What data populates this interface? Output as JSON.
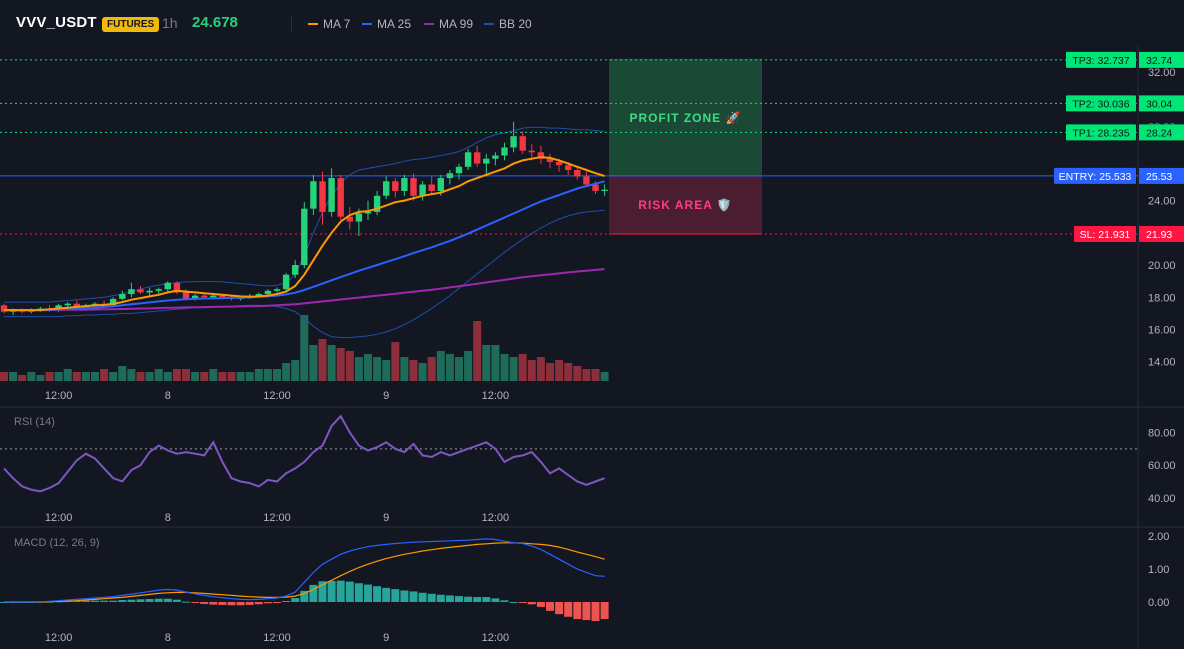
{
  "header": {
    "symbol": "VVV_USDT",
    "badge": "FUTURES",
    "timeframe": "1h",
    "last_price": "24.678",
    "indicators": [
      {
        "label": "MA 7",
        "color": "#ff9800"
      },
      {
        "label": "MA 25",
        "color": "#2962ff"
      },
      {
        "label": "MA 99",
        "color": "#9c27b0"
      },
      {
        "label": "BB 20",
        "color": "#1e4fa8"
      }
    ]
  },
  "colors": {
    "up": "#26d37a",
    "down": "#f23645",
    "vol_up": "#1f6b5a",
    "vol_down": "#8c2f3b",
    "tp": "#00e676",
    "sl": "#ff1744",
    "entry": "#2962ff",
    "rsi": "#7e57c2",
    "macd": "#2962ff",
    "signal": "#ff9800",
    "hist_up": "#26a69a",
    "hist_down": "#ef5350"
  },
  "chart_data": {
    "type": "candlestick",
    "y_ticks": [
      "32.00",
      "24.00",
      "20.00",
      "18.00",
      "16.00",
      "14.00"
    ],
    "y_ticks_hidden": [
      "28.00"
    ],
    "ylim": [
      12.8,
      33.6
    ],
    "time_labels": [
      "12:00",
      "8",
      "12:00",
      "9",
      "12:00"
    ],
    "time_label_index": [
      6,
      18,
      30,
      42,
      54
    ],
    "candles": [
      {
        "o": 17.5,
        "h": 17.6,
        "l": 17.0,
        "c": 17.1
      },
      {
        "o": 17.1,
        "h": 17.3,
        "l": 16.9,
        "c": 17.2
      },
      {
        "o": 17.2,
        "h": 17.3,
        "l": 17.0,
        "c": 17.1
      },
      {
        "o": 17.1,
        "h": 17.3,
        "l": 17.0,
        "c": 17.2
      },
      {
        "o": 17.2,
        "h": 17.4,
        "l": 17.1,
        "c": 17.3
      },
      {
        "o": 17.3,
        "h": 17.5,
        "l": 17.1,
        "c": 17.2
      },
      {
        "o": 17.2,
        "h": 17.6,
        "l": 17.1,
        "c": 17.5
      },
      {
        "o": 17.5,
        "h": 17.7,
        "l": 17.3,
        "c": 17.6
      },
      {
        "o": 17.6,
        "h": 17.8,
        "l": 17.3,
        "c": 17.4
      },
      {
        "o": 17.4,
        "h": 17.6,
        "l": 17.2,
        "c": 17.5
      },
      {
        "o": 17.5,
        "h": 17.7,
        "l": 17.3,
        "c": 17.6
      },
      {
        "o": 17.6,
        "h": 17.8,
        "l": 17.4,
        "c": 17.5
      },
      {
        "o": 17.5,
        "h": 18.0,
        "l": 17.4,
        "c": 17.9
      },
      {
        "o": 17.9,
        "h": 18.4,
        "l": 17.8,
        "c": 18.2
      },
      {
        "o": 18.2,
        "h": 18.9,
        "l": 18.0,
        "c": 18.5
      },
      {
        "o": 18.5,
        "h": 18.7,
        "l": 18.2,
        "c": 18.3
      },
      {
        "o": 18.3,
        "h": 18.6,
        "l": 18.1,
        "c": 18.4
      },
      {
        "o": 18.4,
        "h": 18.6,
        "l": 18.2,
        "c": 18.5
      },
      {
        "o": 18.5,
        "h": 19.0,
        "l": 18.3,
        "c": 18.9
      },
      {
        "o": 18.9,
        "h": 19.0,
        "l": 18.2,
        "c": 18.3
      },
      {
        "o": 18.3,
        "h": 18.5,
        "l": 17.8,
        "c": 17.9
      },
      {
        "o": 17.9,
        "h": 18.2,
        "l": 17.8,
        "c": 18.1
      },
      {
        "o": 18.1,
        "h": 18.2,
        "l": 17.9,
        "c": 18.0
      },
      {
        "o": 18.0,
        "h": 18.2,
        "l": 17.9,
        "c": 18.1
      },
      {
        "o": 18.1,
        "h": 18.2,
        "l": 17.9,
        "c": 18.0
      },
      {
        "o": 18.0,
        "h": 18.1,
        "l": 17.8,
        "c": 17.9
      },
      {
        "o": 17.9,
        "h": 18.1,
        "l": 17.8,
        "c": 18.0
      },
      {
        "o": 18.0,
        "h": 18.2,
        "l": 17.9,
        "c": 18.1
      },
      {
        "o": 18.1,
        "h": 18.3,
        "l": 18.0,
        "c": 18.2
      },
      {
        "o": 18.2,
        "h": 18.5,
        "l": 18.0,
        "c": 18.4
      },
      {
        "o": 18.4,
        "h": 18.6,
        "l": 18.3,
        "c": 18.5
      },
      {
        "o": 18.5,
        "h": 19.5,
        "l": 18.4,
        "c": 19.4
      },
      {
        "o": 19.4,
        "h": 20.3,
        "l": 19.2,
        "c": 20.0
      },
      {
        "o": 20.0,
        "h": 23.9,
        "l": 19.8,
        "c": 23.5
      },
      {
        "o": 23.5,
        "h": 25.6,
        "l": 23.1,
        "c": 25.2
      },
      {
        "o": 25.2,
        "h": 25.8,
        "l": 22.5,
        "c": 23.3
      },
      {
        "o": 23.3,
        "h": 26.0,
        "l": 23.0,
        "c": 25.4
      },
      {
        "o": 25.4,
        "h": 25.6,
        "l": 22.8,
        "c": 23.0
      },
      {
        "o": 23.0,
        "h": 23.6,
        "l": 22.2,
        "c": 22.7
      },
      {
        "o": 22.7,
        "h": 23.5,
        "l": 21.8,
        "c": 23.2
      },
      {
        "o": 23.2,
        "h": 24.0,
        "l": 22.8,
        "c": 23.3
      },
      {
        "o": 23.3,
        "h": 24.6,
        "l": 23.1,
        "c": 24.3
      },
      {
        "o": 24.3,
        "h": 25.5,
        "l": 24.1,
        "c": 25.2
      },
      {
        "o": 25.2,
        "h": 25.4,
        "l": 24.2,
        "c": 24.6
      },
      {
        "o": 24.6,
        "h": 25.6,
        "l": 24.3,
        "c": 25.4
      },
      {
        "o": 25.4,
        "h": 25.7,
        "l": 24.0,
        "c": 24.3
      },
      {
        "o": 24.3,
        "h": 25.2,
        "l": 24.0,
        "c": 25.0
      },
      {
        "o": 25.0,
        "h": 25.5,
        "l": 24.4,
        "c": 24.6
      },
      {
        "o": 24.6,
        "h": 25.6,
        "l": 24.3,
        "c": 25.4
      },
      {
        "o": 25.4,
        "h": 25.9,
        "l": 25.0,
        "c": 25.7
      },
      {
        "o": 25.7,
        "h": 26.3,
        "l": 25.3,
        "c": 26.1
      },
      {
        "o": 26.1,
        "h": 27.2,
        "l": 25.9,
        "c": 27.0
      },
      {
        "o": 27.0,
        "h": 27.4,
        "l": 26.1,
        "c": 26.3
      },
      {
        "o": 26.3,
        "h": 26.9,
        "l": 25.5,
        "c": 26.6
      },
      {
        "o": 26.6,
        "h": 27.0,
        "l": 26.2,
        "c": 26.8
      },
      {
        "o": 26.8,
        "h": 27.6,
        "l": 26.5,
        "c": 27.3
      },
      {
        "o": 27.3,
        "h": 28.9,
        "l": 27.0,
        "c": 28.0
      },
      {
        "o": 28.0,
        "h": 28.3,
        "l": 26.9,
        "c": 27.1
      },
      {
        "o": 27.1,
        "h": 27.5,
        "l": 26.5,
        "c": 27.0
      },
      {
        "o": 27.0,
        "h": 27.4,
        "l": 26.3,
        "c": 26.6
      },
      {
        "o": 26.6,
        "h": 26.9,
        "l": 26.0,
        "c": 26.4
      },
      {
        "o": 26.4,
        "h": 26.6,
        "l": 25.8,
        "c": 26.2
      },
      {
        "o": 26.2,
        "h": 26.4,
        "l": 25.6,
        "c": 25.9
      },
      {
        "o": 25.9,
        "h": 26.1,
        "l": 25.3,
        "c": 25.5
      },
      {
        "o": 25.5,
        "h": 25.8,
        "l": 24.9,
        "c": 25.0
      },
      {
        "o": 25.0,
        "h": 25.2,
        "l": 24.4,
        "c": 24.6
      },
      {
        "o": 24.6,
        "h": 25.0,
        "l": 24.3,
        "c": 24.678
      }
    ],
    "volume": [
      3,
      3,
      2,
      3,
      2,
      3,
      3,
      4,
      3,
      3,
      3,
      4,
      3,
      5,
      4,
      3,
      3,
      4,
      3,
      4,
      4,
      3,
      3,
      4,
      3,
      3,
      3,
      3,
      4,
      4,
      4,
      6,
      7,
      22,
      12,
      14,
      12,
      11,
      10,
      8,
      9,
      8,
      7,
      13,
      8,
      7,
      6,
      8,
      10,
      9,
      8,
      10,
      20,
      12,
      12,
      9,
      8,
      9,
      7,
      8,
      6,
      7,
      6,
      5,
      4,
      4,
      3
    ],
    "ma7": [
      17.2,
      17.2,
      17.2,
      17.2,
      17.2,
      17.25,
      17.3,
      17.35,
      17.4,
      17.45,
      17.5,
      17.52,
      17.6,
      17.7,
      17.85,
      17.95,
      18.05,
      18.15,
      18.3,
      18.4,
      18.35,
      18.3,
      18.25,
      18.2,
      18.15,
      18.1,
      18.05,
      18.03,
      18.05,
      18.1,
      18.2,
      18.35,
      18.7,
      19.4,
      20.3,
      21.2,
      22.0,
      22.7,
      23.1,
      23.3,
      23.35,
      23.5,
      23.7,
      23.9,
      24.0,
      24.15,
      24.3,
      24.4,
      24.5,
      24.7,
      24.9,
      25.2,
      25.4,
      25.6,
      25.8,
      26.0,
      26.3,
      26.5,
      26.6,
      26.7,
      26.65,
      26.5,
      26.3,
      26.1,
      25.9,
      25.7,
      25.53
    ],
    "ma25": [
      17.2,
      17.2,
      17.2,
      17.2,
      17.2,
      17.22,
      17.25,
      17.28,
      17.3,
      17.33,
      17.36,
      17.4,
      17.44,
      17.5,
      17.56,
      17.62,
      17.68,
      17.74,
      17.8,
      17.85,
      17.88,
      17.9,
      17.92,
      17.93,
      17.95,
      17.97,
      17.98,
      18.0,
      18.03,
      18.06,
      18.1,
      18.18,
      18.28,
      18.45,
      18.65,
      18.85,
      19.05,
      19.25,
      19.45,
      19.65,
      19.82,
      20.0,
      20.18,
      20.36,
      20.55,
      20.74,
      20.92,
      21.1,
      21.3,
      21.5,
      21.72,
      21.95,
      22.2,
      22.45,
      22.7,
      22.95,
      23.2,
      23.45,
      23.7,
      23.95,
      24.15,
      24.35,
      24.55,
      24.75,
      24.9,
      25.05,
      25.2
    ],
    "ma99": [
      17.2,
      17.2,
      17.2,
      17.2,
      17.2,
      17.2,
      17.21,
      17.22,
      17.22,
      17.23,
      17.24,
      17.25,
      17.26,
      17.27,
      17.28,
      17.3,
      17.31,
      17.33,
      17.34,
      17.36,
      17.37,
      17.38,
      17.39,
      17.4,
      17.41,
      17.42,
      17.43,
      17.44,
      17.45,
      17.47,
      17.5,
      17.53,
      17.57,
      17.62,
      17.68,
      17.74,
      17.8,
      17.86,
      17.92,
      17.98,
      18.04,
      18.1,
      18.16,
      18.22,
      18.28,
      18.34,
      18.4,
      18.47,
      18.54,
      18.61,
      18.68,
      18.76,
      18.84,
      18.92,
      19.0,
      19.08,
      19.16,
      19.24,
      19.3,
      19.36,
      19.42,
      19.48,
      19.54,
      19.6,
      19.65,
      19.7,
      19.75
    ],
    "bb_upper": [
      17.7,
      17.7,
      17.7,
      17.7,
      17.7,
      17.7,
      17.75,
      17.8,
      17.85,
      17.9,
      17.95,
      18.0,
      18.1,
      18.2,
      18.35,
      18.5,
      18.65,
      18.75,
      18.85,
      18.9,
      18.95,
      18.97,
      18.98,
      18.98,
      18.95,
      18.9,
      18.85,
      18.8,
      18.75,
      18.7,
      18.75,
      18.9,
      19.4,
      20.6,
      22.0,
      23.3,
      24.3,
      25.1,
      25.6,
      25.9,
      26.0,
      26.1,
      26.2,
      26.3,
      26.45,
      26.55,
      26.6,
      26.7,
      26.8,
      26.9,
      27.05,
      27.3,
      27.6,
      27.9,
      28.1,
      28.2,
      28.35,
      28.5,
      28.55,
      28.55,
      28.5,
      28.5,
      28.45,
      28.4,
      28.4,
      28.35,
      28.3
    ],
    "bb_lower": [
      16.8,
      16.8,
      16.8,
      16.8,
      16.8,
      16.8,
      16.8,
      16.85,
      16.85,
      16.9,
      16.9,
      16.95,
      16.95,
      17.0,
      17.0,
      17.05,
      17.1,
      17.15,
      17.2,
      17.25,
      17.3,
      17.35,
      17.35,
      17.4,
      17.42,
      17.45,
      17.48,
      17.5,
      17.5,
      17.48,
      17.42,
      17.3,
      17.1,
      16.7,
      16.2,
      15.8,
      15.55,
      15.5,
      15.5,
      15.55,
      15.6,
      15.7,
      15.85,
      16.05,
      16.3,
      16.6,
      16.95,
      17.3,
      17.7,
      18.1,
      18.55,
      19.0,
      19.45,
      19.9,
      20.35,
      20.8,
      21.2,
      21.6,
      21.95,
      22.3,
      22.6,
      22.85,
      23.05,
      23.2,
      23.3,
      23.35,
      23.4
    ],
    "rsi": [
      58,
      52,
      47,
      45,
      44,
      46,
      49,
      56,
      63,
      67,
      64,
      58,
      52,
      50,
      57,
      60,
      68,
      72,
      69,
      67,
      68,
      67,
      66,
      74,
      62,
      52,
      50,
      49,
      47,
      51,
      50,
      55,
      58,
      62,
      68,
      72,
      84,
      90,
      80,
      72,
      69,
      71,
      74,
      70,
      68,
      73,
      66,
      65,
      68,
      66,
      68,
      70,
      72,
      74,
      70,
      62,
      65,
      66,
      68,
      62,
      55,
      58,
      54,
      50,
      48,
      50,
      52
    ],
    "rsi_ticks": [
      "80.00",
      "60.00",
      "40.00"
    ],
    "rsi_label": "RSI (14)",
    "rsi_overbought": 70,
    "macd": [
      0,
      0,
      0,
      0,
      0.01,
      0.02,
      0.04,
      0.06,
      0.08,
      0.1,
      0.12,
      0.14,
      0.16,
      0.2,
      0.24,
      0.28,
      0.32,
      0.36,
      0.38,
      0.36,
      0.3,
      0.25,
      0.2,
      0.16,
      0.13,
      0.1,
      0.08,
      0.07,
      0.08,
      0.1,
      0.12,
      0.18,
      0.3,
      0.6,
      0.9,
      1.15,
      1.3,
      1.45,
      1.55,
      1.62,
      1.68,
      1.72,
      1.75,
      1.78,
      1.8,
      1.82,
      1.83,
      1.84,
      1.85,
      1.86,
      1.87,
      1.88,
      1.9,
      1.92,
      1.9,
      1.85,
      1.8,
      1.78,
      1.7,
      1.6,
      1.45,
      1.3,
      1.15,
      1.0,
      0.9,
      0.8,
      0.78
    ],
    "signal": [
      0,
      0,
      0,
      0,
      0,
      0.01,
      0.02,
      0.03,
      0.04,
      0.06,
      0.08,
      0.1,
      0.12,
      0.14,
      0.17,
      0.2,
      0.23,
      0.26,
      0.28,
      0.29,
      0.29,
      0.28,
      0.26,
      0.24,
      0.22,
      0.2,
      0.18,
      0.16,
      0.15,
      0.14,
      0.14,
      0.15,
      0.18,
      0.26,
      0.38,
      0.52,
      0.66,
      0.8,
      0.93,
      1.05,
      1.15,
      1.24,
      1.32,
      1.39,
      1.45,
      1.5,
      1.55,
      1.59,
      1.63,
      1.66,
      1.69,
      1.72,
      1.75,
      1.77,
      1.79,
      1.8,
      1.8,
      1.79,
      1.77,
      1.75,
      1.72,
      1.67,
      1.6,
      1.52,
      1.45,
      1.38,
      1.3
    ],
    "macd_ticks": [
      "2.00",
      "1.00",
      "0.00"
    ],
    "macd_label": "MACD (12, 26, 9)",
    "levels": {
      "tp3": {
        "label": "TP3: 32.737",
        "axis": "32.74",
        "value": 32.737
      },
      "tp2": {
        "label": "TP2: 30.036",
        "axis": "30.04",
        "value": 30.036
      },
      "tp1": {
        "label": "TP1: 28.235",
        "axis": "28.24",
        "value": 28.235
      },
      "entry": {
        "label": "ENTRY: 25.533",
        "axis": "25.53",
        "value": 25.533
      },
      "sl": {
        "label": "SL: 21.931",
        "axis": "21.93",
        "value": 21.931
      }
    },
    "zones": {
      "profit": "PROFIT ZONE 🚀",
      "risk": "RISK AREA 🛡️"
    }
  }
}
